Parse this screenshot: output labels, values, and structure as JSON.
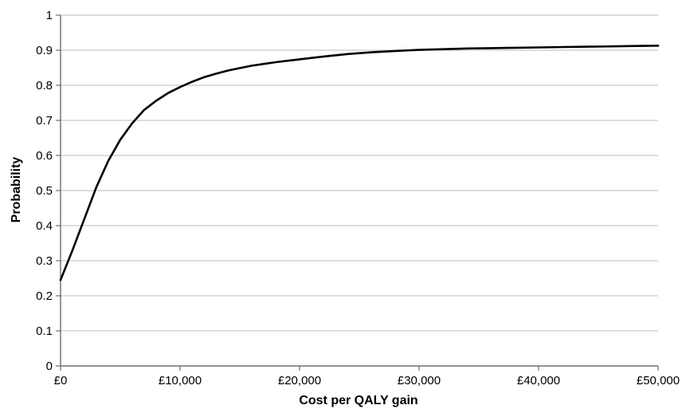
{
  "chart_data": {
    "type": "line",
    "title": "",
    "xlabel": "Cost per QALY gain",
    "ylabel": "Probability",
    "xlim": [
      0,
      50000
    ],
    "ylim": [
      0,
      1
    ],
    "grid": "horizontal",
    "legend": "none",
    "x_ticks": [
      0,
      10000,
      20000,
      30000,
      40000,
      50000
    ],
    "x_tick_labels": [
      "£0",
      "£10,000",
      "£20,000",
      "£30,000",
      "£40,000",
      "£50,000"
    ],
    "y_ticks": [
      0,
      0.1,
      0.2,
      0.3,
      0.4,
      0.5,
      0.6,
      0.7,
      0.8,
      0.9,
      1
    ],
    "y_tick_labels": [
      "0",
      "0.1",
      "0.2",
      "0.3",
      "0.4",
      "0.5",
      "0.6",
      "0.7",
      "0.8",
      "0.9",
      "1"
    ],
    "series": [
      {
        "color": "#000000",
        "x": [
          0,
          1000,
          2000,
          3000,
          4000,
          5000,
          6000,
          7000,
          8000,
          9000,
          10000,
          11000,
          12000,
          13000,
          14000,
          15000,
          16000,
          17000,
          18000,
          19000,
          20000,
          22000,
          24000,
          26000,
          28000,
          30000,
          32000,
          34000,
          36000,
          38000,
          40000,
          42000,
          44000,
          46000,
          48000,
          50000
        ],
        "y": [
          0.245,
          0.33,
          0.42,
          0.51,
          0.585,
          0.645,
          0.692,
          0.73,
          0.756,
          0.778,
          0.795,
          0.81,
          0.823,
          0.833,
          0.842,
          0.849,
          0.856,
          0.861,
          0.866,
          0.87,
          0.874,
          0.882,
          0.889,
          0.894,
          0.898,
          0.901,
          0.903,
          0.905,
          0.906,
          0.907,
          0.908,
          0.909,
          0.91,
          0.911,
          0.912,
          0.913
        ]
      }
    ]
  }
}
